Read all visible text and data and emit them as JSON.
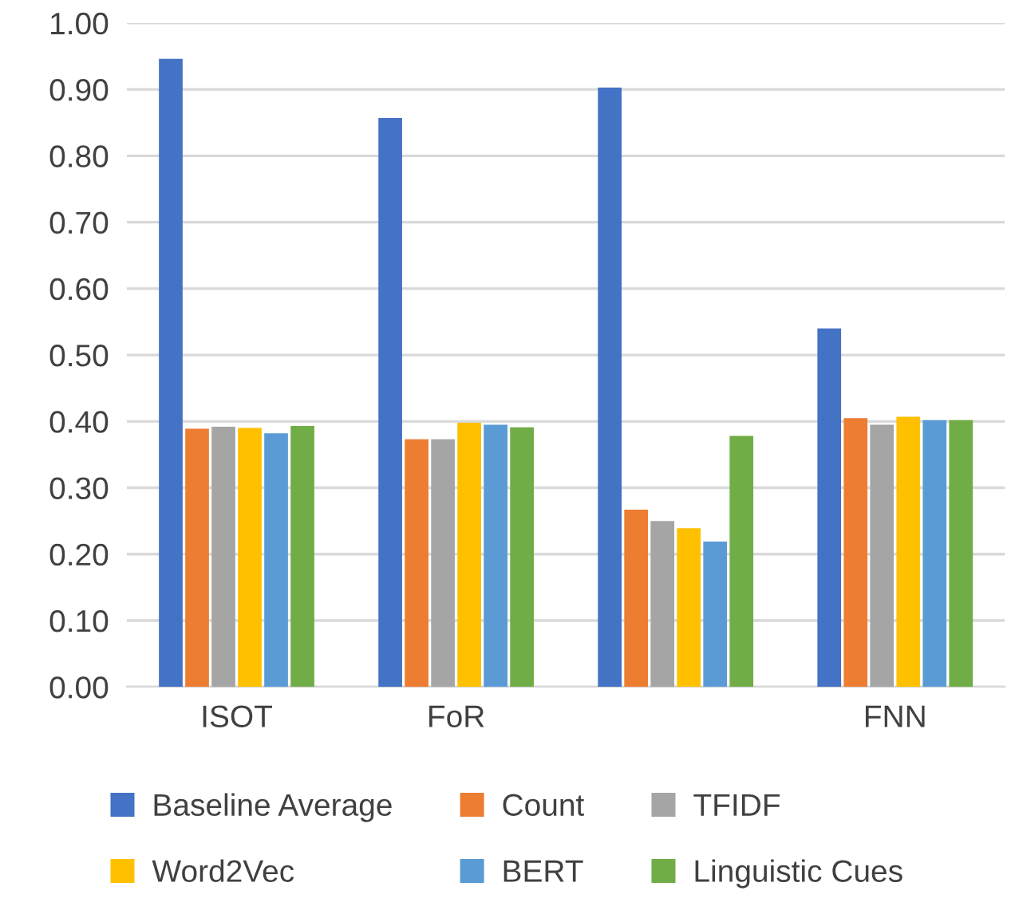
{
  "chart_data": {
    "type": "bar",
    "categories": [
      "ISOT",
      "FoR",
      null,
      "FNN"
    ],
    "series": [
      {
        "name": "Baseline Average",
        "color": "#4472c4",
        "values": [
          0.946,
          0.857,
          0.903,
          0.54
        ]
      },
      {
        "name": "Count",
        "color": "#ed7d31",
        "values": [
          0.389,
          0.373,
          0.267,
          0.405
        ]
      },
      {
        "name": "TFIDF",
        "color": "#a5a5a5",
        "values": [
          0.392,
          0.373,
          0.25,
          0.395
        ]
      },
      {
        "name": "Word2Vec",
        "color": "#ffc000",
        "values": [
          0.39,
          0.398,
          0.239,
          0.407
        ]
      },
      {
        "name": "BERT",
        "color": "#5b9bd5",
        "values": [
          0.382,
          0.395,
          0.219,
          0.402
        ]
      },
      {
        "name": "Linguistic Cues",
        "color": "#70ad47",
        "values": [
          0.393,
          0.391,
          0.378,
          0.402
        ]
      }
    ],
    "ylim": [
      0,
      1
    ],
    "yticks": [
      {
        "value": 0,
        "label": "0.00"
      },
      {
        "value": 0.1,
        "label": "0.10"
      },
      {
        "value": 0.2,
        "label": "0.20"
      },
      {
        "value": 0.3,
        "label": "0.30"
      },
      {
        "value": 0.4,
        "label": "0.40"
      },
      {
        "value": 0.5,
        "label": "0.50"
      },
      {
        "value": 0.6,
        "label": "0.60"
      },
      {
        "value": 0.7,
        "label": "0.70"
      },
      {
        "value": 0.8,
        "label": "0.80"
      },
      {
        "value": 0.9,
        "label": "0.90"
      },
      {
        "value": 1.0,
        "label": "1.00"
      }
    ],
    "grid": "y",
    "legend": "bottom"
  }
}
